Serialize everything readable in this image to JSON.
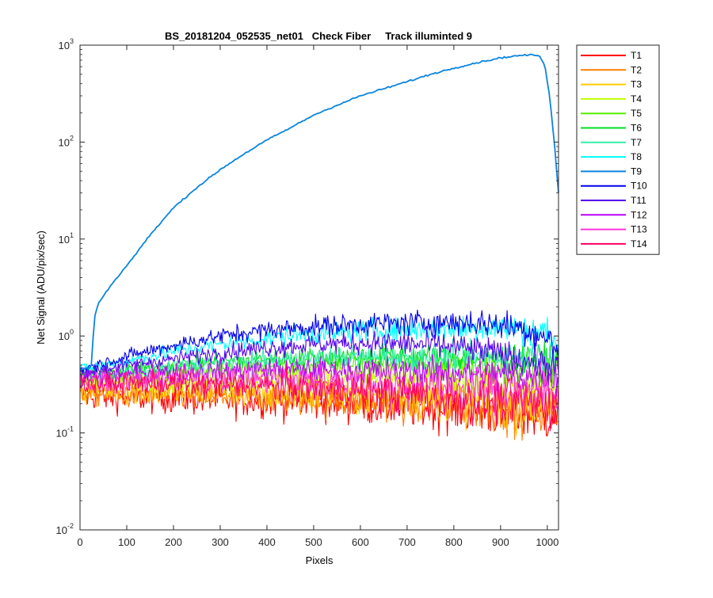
{
  "chart_data": {
    "type": "line",
    "title": "BS_20181204_052535_net01   Check Fiber     Track illuminted 9",
    "xlabel": "Pixels",
    "ylabel": "Net Signal (ADU/pix/sec)",
    "xlim": [
      0,
      1024
    ],
    "ylim": [
      0.01,
      1000
    ],
    "yscale": "log",
    "grid": false,
    "legend_position": "outside-top-right",
    "x_ticks": [
      "0",
      "100",
      "200",
      "300",
      "400",
      "500",
      "600",
      "700",
      "800",
      "900",
      "1000"
    ],
    "y_ticks": [
      {
        "base": "10",
        "exp": "-2"
      },
      {
        "base": "10",
        "exp": "-1"
      },
      {
        "base": "10",
        "exp": "0"
      },
      {
        "base": "10",
        "exp": "1"
      },
      {
        "base": "10",
        "exp": "2"
      },
      {
        "base": "10",
        "exp": "3"
      }
    ],
    "series": [
      {
        "name": "T1",
        "color": "#ff0000",
        "x": [
          0,
          100,
          200,
          300,
          400,
          500,
          600,
          700,
          800,
          900,
          1000,
          1024
        ],
        "y": [
          0.24,
          0.23,
          0.23,
          0.22,
          0.22,
          0.21,
          0.2,
          0.19,
          0.18,
          0.16,
          0.15,
          0.15
        ]
      },
      {
        "name": "T2",
        "color": "#ff7f00",
        "x": [
          0,
          100,
          200,
          300,
          400,
          500,
          600,
          700,
          800,
          900,
          1000,
          1024
        ],
        "y": [
          0.26,
          0.25,
          0.25,
          0.24,
          0.24,
          0.23,
          0.22,
          0.21,
          0.2,
          0.18,
          0.17,
          0.17
        ]
      },
      {
        "name": "T3",
        "color": "#ffcc00",
        "x": [
          0,
          100,
          200,
          300,
          400,
          500,
          600,
          700,
          800,
          900,
          1000,
          1024
        ],
        "y": [
          0.28,
          0.27,
          0.27,
          0.26,
          0.26,
          0.25,
          0.24,
          0.23,
          0.22,
          0.2,
          0.19,
          0.19
        ]
      },
      {
        "name": "T4",
        "color": "#bfff00",
        "x": [
          0,
          100,
          200,
          300,
          400,
          500,
          600,
          700,
          800,
          900,
          1000,
          1024
        ],
        "y": [
          0.34,
          0.34,
          0.35,
          0.36,
          0.37,
          0.37,
          0.37,
          0.36,
          0.35,
          0.33,
          0.31,
          0.3
        ]
      },
      {
        "name": "T5",
        "color": "#55ee00",
        "x": [
          0,
          100,
          200,
          300,
          400,
          500,
          600,
          700,
          800,
          900,
          1000,
          1024
        ],
        "y": [
          0.38,
          0.4,
          0.43,
          0.46,
          0.48,
          0.5,
          0.51,
          0.51,
          0.5,
          0.48,
          0.45,
          0.44
        ]
      },
      {
        "name": "T6",
        "color": "#00dd22",
        "x": [
          0,
          100,
          200,
          300,
          400,
          500,
          600,
          700,
          800,
          900,
          1000,
          1024
        ],
        "y": [
          0.4,
          0.44,
          0.5,
          0.55,
          0.58,
          0.6,
          0.61,
          0.61,
          0.6,
          0.59,
          0.58,
          0.57
        ]
      },
      {
        "name": "T7",
        "color": "#33eeaa",
        "x": [
          0,
          100,
          200,
          300,
          400,
          500,
          600,
          700,
          800,
          900,
          1000,
          1024
        ],
        "y": [
          0.38,
          0.42,
          0.47,
          0.52,
          0.56,
          0.59,
          0.6,
          0.61,
          0.61,
          0.62,
          0.63,
          0.63
        ]
      },
      {
        "name": "T8",
        "color": "#00ffff",
        "x": [
          0,
          100,
          200,
          300,
          400,
          500,
          600,
          700,
          800,
          900,
          1000,
          1024
        ],
        "y": [
          0.45,
          0.55,
          0.7,
          0.82,
          0.95,
          1.05,
          1.12,
          1.18,
          1.2,
          1.22,
          1.1,
          0.7
        ]
      },
      {
        "name": "T9",
        "color": "#0a85e0",
        "x": [
          0,
          20,
          25,
          30,
          40,
          50,
          75,
          100,
          150,
          200,
          250,
          300,
          350,
          400,
          450,
          500,
          550,
          600,
          650,
          700,
          750,
          800,
          850,
          900,
          950,
          975,
          985,
          995,
          1005,
          1015,
          1024
        ],
        "y": [
          0.45,
          0.47,
          0.5,
          1.5,
          2.2,
          2.6,
          3.8,
          5.3,
          11.0,
          21.0,
          34.0,
          52.0,
          75.0,
          105.0,
          140.0,
          190.0,
          240.0,
          300.0,
          355.0,
          420.0,
          500.0,
          580.0,
          660.0,
          740.0,
          790.0,
          790.0,
          760.0,
          600.0,
          300.0,
          100.0,
          30.0
        ]
      },
      {
        "name": "T10",
        "color": "#0000ee",
        "x": [
          0,
          100,
          200,
          300,
          400,
          500,
          600,
          700,
          800,
          850,
          900,
          950,
          1000,
          1024
        ],
        "y": [
          0.45,
          0.62,
          0.8,
          1.0,
          1.15,
          1.25,
          1.32,
          1.36,
          1.38,
          1.38,
          1.3,
          1.2,
          0.95,
          0.7
        ]
      },
      {
        "name": "T11",
        "color": "#5500ee",
        "x": [
          0,
          100,
          200,
          300,
          400,
          500,
          600,
          700,
          800,
          900,
          1000,
          1024
        ],
        "y": [
          0.42,
          0.5,
          0.58,
          0.68,
          0.76,
          0.82,
          0.85,
          0.83,
          0.78,
          0.65,
          0.5,
          0.45
        ]
      },
      {
        "name": "T12",
        "color": "#bb00ff",
        "x": [
          0,
          100,
          200,
          300,
          400,
          500,
          600,
          700,
          800,
          900,
          1000,
          1024
        ],
        "y": [
          0.38,
          0.4,
          0.42,
          0.44,
          0.45,
          0.45,
          0.44,
          0.43,
          0.42,
          0.4,
          0.38,
          0.38
        ]
      },
      {
        "name": "T13",
        "color": "#ff33dd",
        "x": [
          0,
          100,
          200,
          300,
          400,
          500,
          600,
          700,
          800,
          900,
          1000,
          1024
        ],
        "y": [
          0.34,
          0.35,
          0.36,
          0.36,
          0.36,
          0.35,
          0.33,
          0.31,
          0.29,
          0.27,
          0.26,
          0.26
        ]
      },
      {
        "name": "T14",
        "color": "#ff0066",
        "x": [
          0,
          100,
          200,
          300,
          400,
          500,
          600,
          700,
          800,
          900,
          1000,
          1024
        ],
        "y": [
          0.32,
          0.32,
          0.32,
          0.31,
          0.3,
          0.29,
          0.27,
          0.25,
          0.23,
          0.21,
          0.2,
          0.2
        ]
      }
    ]
  }
}
